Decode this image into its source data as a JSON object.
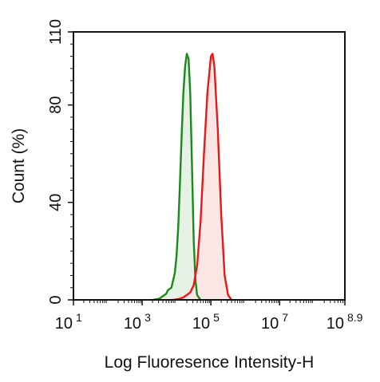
{
  "chart_data": {
    "type": "area",
    "xlabel": "Log Fluoresence Intensity-H",
    "ylabel": "Count  (%)",
    "x_scale": "log10",
    "xlim": [
      1,
      8.9
    ],
    "ylim": [
      0,
      110
    ],
    "x_ticks": [
      {
        "base": "10",
        "exp": "1",
        "value": 1
      },
      {
        "base": "10",
        "exp": "3",
        "value": 3
      },
      {
        "base": "10",
        "exp": "5",
        "value": 5
      },
      {
        "base": "10",
        "exp": "7",
        "value": 7
      },
      {
        "base": "10",
        "exp": "8.9",
        "value": 8.9
      }
    ],
    "y_ticks": [
      {
        "label": "0",
        "value": 0
      },
      {
        "label": "40",
        "value": 40
      },
      {
        "label": "80",
        "value": 80
      },
      {
        "label": "110",
        "value": 110
      }
    ],
    "grid": false,
    "legend": "none",
    "series": [
      {
        "color": "#1a8a1a",
        "fill": "#e6f2e6",
        "x": [
          3.3,
          3.5,
          3.6,
          3.7,
          3.75,
          3.85,
          3.95,
          4.0,
          4.05,
          4.1,
          4.15,
          4.2,
          4.25,
          4.3,
          4.35,
          4.4,
          4.45,
          4.5,
          4.55,
          4.6,
          4.7
        ],
        "y": [
          0,
          0.5,
          1.5,
          2.5,
          4,
          5,
          11,
          18,
          30,
          48,
          68,
          85,
          96,
          101,
          99,
          85,
          55,
          25,
          8,
          2,
          0
        ]
      },
      {
        "color": "#e81818",
        "fill": "#fbe6e6",
        "x": [
          3.9,
          4.1,
          4.2,
          4.3,
          4.4,
          4.5,
          4.6,
          4.7,
          4.8,
          4.9,
          5.0,
          5.05,
          5.1,
          5.2,
          5.3,
          5.4,
          5.5,
          5.6
        ],
        "y": [
          0,
          0.5,
          1,
          2,
          3,
          6,
          14,
          32,
          60,
          85,
          100,
          101,
          96,
          70,
          35,
          10,
          2,
          0
        ]
      }
    ]
  }
}
